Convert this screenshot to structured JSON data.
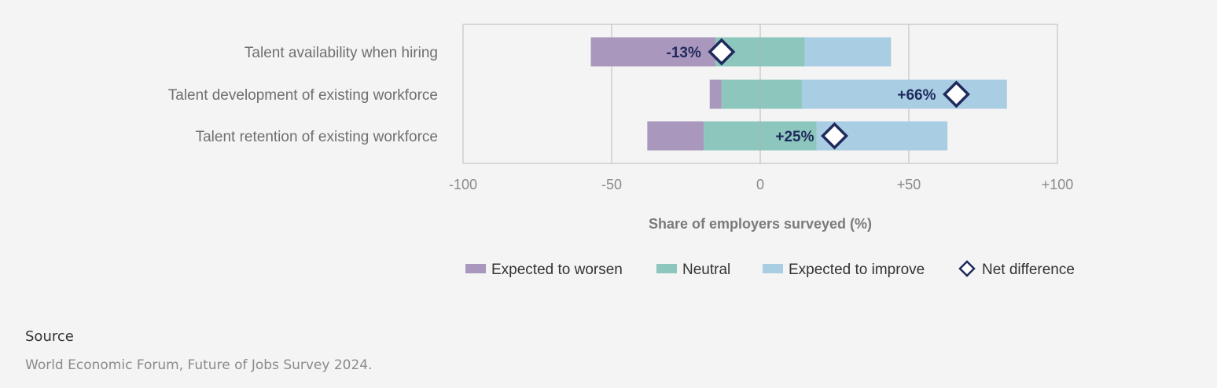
{
  "chart_data": {
    "type": "bar",
    "orientation": "horizontal",
    "stacked": "diverging",
    "categories": [
      "Talent availability when hiring",
      "Talent development of existing workforce",
      "Talent retention of existing workforce"
    ],
    "series": [
      {
        "name": "Expected to worsen",
        "color": "#a997bd",
        "ranges": [
          [
            -57,
            -15
          ],
          [
            -17,
            -13
          ],
          [
            -38,
            -19
          ]
        ]
      },
      {
        "name": "Neutral",
        "color": "#8cc6bd",
        "ranges": [
          [
            -15,
            15
          ],
          [
            -13,
            14
          ],
          [
            -19,
            19
          ]
        ]
      },
      {
        "name": "Expected to improve",
        "color": "#a9cde3",
        "ranges": [
          [
            15,
            44
          ],
          [
            14,
            83
          ],
          [
            19,
            63
          ]
        ]
      }
    ],
    "net_difference": {
      "name": "Net difference",
      "values": [
        -13,
        66,
        25
      ],
      "labels": [
        "-13%",
        "+66%",
        "+25%"
      ],
      "marker_color": "#1f2a5c"
    },
    "xlim": [
      -100,
      100
    ],
    "xticks": [
      -100,
      -50,
      0,
      50,
      100
    ],
    "xtick_labels": [
      "-100",
      "-50",
      "0",
      "+50",
      "+100"
    ],
    "xlabel": "Share of employers surveyed (%)",
    "grid": true,
    "legend": "bottom"
  },
  "source": {
    "title": "Source",
    "text": "World Economic Forum, Future of Jobs Survey 2024."
  }
}
